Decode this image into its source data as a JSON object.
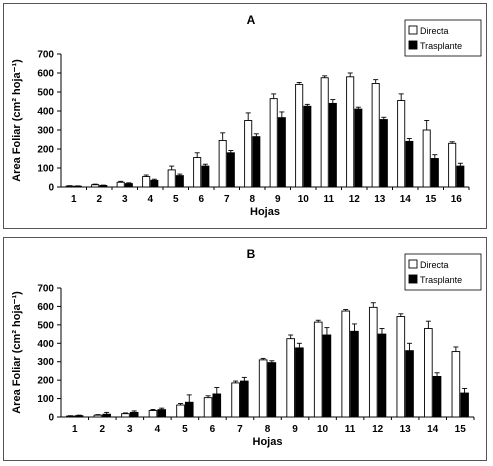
{
  "chart_data": [
    {
      "type": "bar",
      "title": "A",
      "xlabel": "Hojas",
      "ylabel": "Area Foliar (cm² hoja⁻¹)",
      "ylim": [
        0,
        700
      ],
      "yticks": [
        0,
        100,
        200,
        300,
        400,
        500,
        600,
        700
      ],
      "legend_position": "top-right",
      "categories": [
        "1",
        "2",
        "3",
        "4",
        "5",
        "6",
        "7",
        "8",
        "9",
        "10",
        "11",
        "12",
        "13",
        "14",
        "15",
        "16"
      ],
      "series": [
        {
          "name": "Directa",
          "color": "#ffffff",
          "values": [
            5,
            12,
            25,
            55,
            90,
            155,
            245,
            350,
            465,
            540,
            575,
            580,
            545,
            455,
            300,
            230
          ],
          "errors": [
            2,
            3,
            5,
            8,
            20,
            25,
            40,
            40,
            25,
            10,
            10,
            20,
            20,
            35,
            50,
            8
          ]
        },
        {
          "name": "Trasplante",
          "color": "#000000",
          "values": [
            4,
            8,
            18,
            35,
            60,
            110,
            180,
            265,
            365,
            425,
            440,
            410,
            355,
            240,
            150,
            110
          ],
          "errors": [
            2,
            2,
            4,
            6,
            8,
            10,
            12,
            15,
            30,
            10,
            20,
            10,
            12,
            15,
            20,
            15
          ]
        }
      ]
    },
    {
      "type": "bar",
      "title": "B",
      "xlabel": "Hojas",
      "ylabel": "Area Foliar (cm² hoja⁻¹)",
      "ylim": [
        0,
        700
      ],
      "yticks": [
        0,
        100,
        200,
        300,
        400,
        500,
        600,
        700
      ],
      "legend_position": "top-right",
      "categories": [
        "1",
        "2",
        "3",
        "4",
        "5",
        "6",
        "7",
        "8",
        "9",
        "10",
        "11",
        "12",
        "13",
        "14",
        "15"
      ],
      "series": [
        {
          "name": "Directa",
          "color": "#ffffff",
          "values": [
            5,
            10,
            18,
            35,
            65,
            105,
            185,
            310,
            425,
            515,
            575,
            595,
            545,
            480,
            355
          ],
          "errors": [
            2,
            3,
            4,
            6,
            8,
            10,
            10,
            8,
            20,
            10,
            8,
            25,
            15,
            40,
            25
          ]
        },
        {
          "name": "Trasplante",
          "color": "#000000",
          "values": [
            7,
            15,
            25,
            40,
            80,
            125,
            195,
            295,
            375,
            445,
            465,
            450,
            360,
            220,
            130
          ],
          "errors": [
            3,
            10,
            8,
            8,
            40,
            35,
            20,
            10,
            25,
            40,
            40,
            30,
            40,
            20,
            25
          ]
        }
      ]
    }
  ]
}
